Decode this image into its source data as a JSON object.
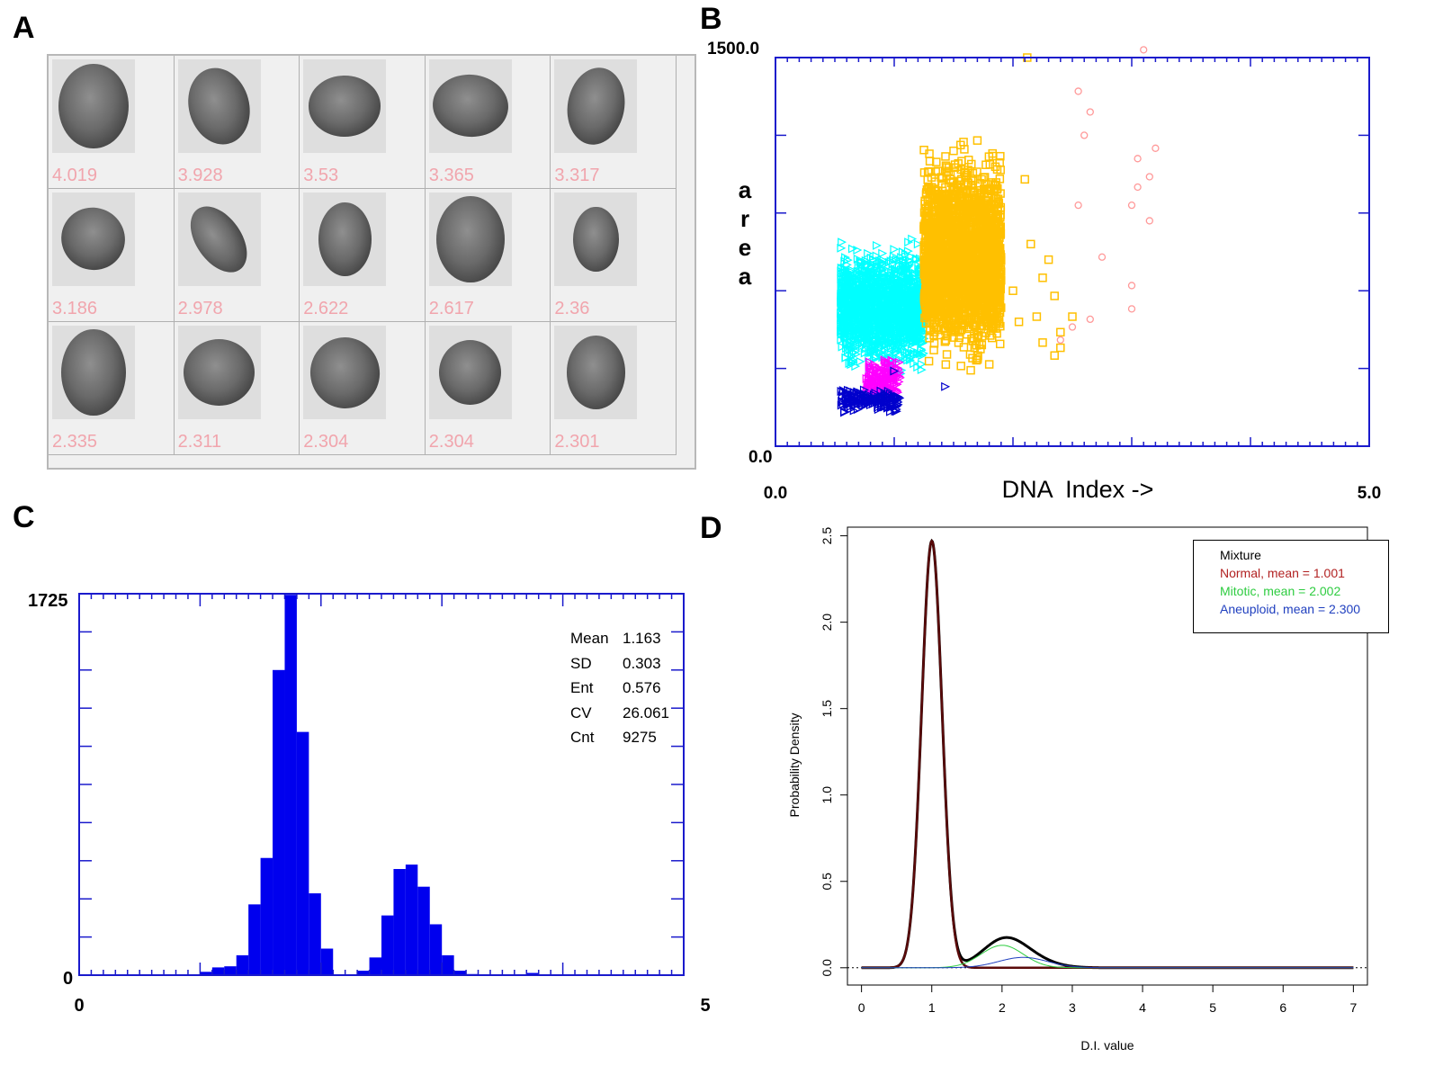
{
  "panels": {
    "a": {
      "letter": "A"
    },
    "b": {
      "letter": "B"
    },
    "c": {
      "letter": "C"
    },
    "d": {
      "letter": "D"
    }
  },
  "cell_gallery": {
    "values": [
      "4.019",
      "3.928",
      "3.53",
      "3.365",
      "3.317",
      "3.186",
      "2.978",
      "2.622",
      "2.617",
      "2.36",
      "2.335",
      "2.311",
      "2.304",
      "2.304",
      "2.301"
    ]
  },
  "chart_data": [
    {
      "type": "scatter",
      "ylabel": "a r e a",
      "xlabel": "DNA  Index ->",
      "xlim": [
        0.0,
        5.0
      ],
      "ylim": [
        0.0,
        1500.0
      ],
      "x_tick_labels": [
        "0.0",
        "5.0"
      ],
      "y_tick_labels": [
        "0.0",
        "1500.0"
      ],
      "series": [
        {
          "color": "#00ffff",
          "marker": "triangle",
          "cluster": {
            "x_range": [
              0.55,
              1.25
            ],
            "y_range": [
              250,
              810
            ]
          },
          "points": [
            [
              1.0,
              760
            ],
            [
              1.15,
              800
            ],
            [
              1.2,
              780
            ],
            [
              0.75,
              520
            ],
            [
              0.6,
              400
            ]
          ]
        },
        {
          "color": "#ffc000",
          "marker": "square",
          "cluster": {
            "x_range": [
              1.25,
              1.9
            ],
            "y_range": [
              270,
              1200
            ]
          },
          "points": [
            [
              1.5,
              1140
            ],
            [
              1.3,
              1100
            ],
            [
              1.7,
              1180
            ],
            [
              2.1,
              1030
            ],
            [
              2.15,
              780
            ],
            [
              2.3,
              720
            ],
            [
              2.25,
              650
            ],
            [
              2.35,
              580
            ],
            [
              2.0,
              600
            ],
            [
              2.25,
              400
            ],
            [
              2.4,
              440
            ],
            [
              2.05,
              480
            ],
            [
              2.5,
              500
            ],
            [
              2.2,
              500
            ],
            [
              1.8,
              600
            ],
            [
              2.4,
              380
            ],
            [
              2.35,
              350
            ],
            [
              2.12,
              1500
            ]
          ]
        },
        {
          "color": "#ff00ff",
          "marker": "triangle",
          "cluster": {
            "x_range": [
              0.75,
              1.05
            ],
            "y_range": [
              160,
              360
            ]
          },
          "points": [
            [
              0.7,
              200
            ],
            [
              0.8,
              170
            ]
          ]
        },
        {
          "color": "#0000cc",
          "marker": "triangle",
          "cluster": {
            "x_range": [
              0.55,
              1.05
            ],
            "y_range": [
              120,
              240
            ]
          },
          "points": [
            [
              0.57,
              210
            ],
            [
              0.58,
              130
            ],
            [
              0.6,
              200
            ],
            [
              1.43,
              230
            ],
            [
              1.0,
              290
            ]
          ]
        },
        {
          "color": "#ff9999",
          "marker": "circle",
          "cluster": null,
          "points": [
            [
              3.1,
              1530
            ],
            [
              2.55,
              1370
            ],
            [
              2.65,
              1290
            ],
            [
              2.6,
              1200
            ],
            [
              3.2,
              1150
            ],
            [
              3.05,
              1110
            ],
            [
              3.15,
              1040
            ],
            [
              3.05,
              1000
            ],
            [
              2.55,
              930
            ],
            [
              3.0,
              930
            ],
            [
              3.15,
              870
            ],
            [
              2.75,
              730
            ],
            [
              3.0,
              620
            ],
            [
              3.0,
              530
            ],
            [
              2.65,
              490
            ],
            [
              2.5,
              460
            ],
            [
              2.4,
              410
            ]
          ]
        }
      ]
    },
    {
      "type": "bar",
      "title": "",
      "xlim": [
        0,
        5
      ],
      "ylim": [
        0,
        1725
      ],
      "x_tick_labels": [
        "0",
        "5"
      ],
      "y_tick_labels": [
        "0",
        "1725"
      ],
      "bin_width": 0.1,
      "bins_x": [
        0.25,
        0.35,
        0.45,
        0.55,
        0.65,
        0.75,
        0.85,
        0.95,
        1.05,
        1.15,
        1.25,
        1.35,
        1.45,
        1.55,
        1.65,
        1.75,
        1.85,
        1.95,
        2.05,
        2.15,
        2.25,
        2.35,
        2.45,
        2.55,
        2.65,
        2.75,
        2.85,
        2.95,
        3.05,
        3.15,
        3.25,
        3.35,
        3.45,
        3.55,
        3.65,
        3.75,
        3.85,
        3.95,
        4.05,
        4.15,
        4.25,
        4.35,
        4.45,
        4.55,
        4.65,
        4.75,
        4.85,
        4.95
      ],
      "values": [
        0,
        0,
        0,
        0,
        0,
        0,
        0,
        0,
        15,
        35,
        40,
        90,
        320,
        530,
        1380,
        1720,
        1100,
        370,
        120,
        0,
        0,
        20,
        80,
        270,
        480,
        500,
        400,
        230,
        90,
        20,
        5,
        0,
        0,
        0,
        0,
        10,
        3,
        0,
        0,
        0,
        0,
        0,
        0,
        0,
        0,
        0,
        0,
        0
      ],
      "stats": [
        {
          "label": "Mean",
          "value": "1.163"
        },
        {
          "label": "SD",
          "value": "0.303"
        },
        {
          "label": "Ent",
          "value": "0.576"
        },
        {
          "label": "CV",
          "value": "26.061"
        },
        {
          "label": "Cnt",
          "value": "9275"
        }
      ]
    },
    {
      "type": "line",
      "xlabel": "D.I. value",
      "ylabel": "Probability Density",
      "xlim": [
        -0.2,
        7.2
      ],
      "ylim": [
        -0.1,
        2.55
      ],
      "x_ticks": [
        0,
        1,
        2,
        3,
        4,
        5,
        6,
        7
      ],
      "x_tick_labels": [
        "0",
        "1",
        "2",
        "3",
        "4",
        "5",
        "6",
        "7"
      ],
      "y_ticks": [
        0.0,
        0.5,
        1.0,
        1.5,
        2.0,
        2.5
      ],
      "y_tick_labels": [
        "0.0",
        "0.5",
        "1.0",
        "1.5",
        "2.0",
        "2.5"
      ],
      "x_range": [
        0,
        7
      ],
      "components": [
        {
          "name": "Normal",
          "color": "#b22222",
          "mean": 1.001,
          "sd": 0.145,
          "peak": 2.47
        },
        {
          "name": "Mitotic",
          "color": "#2ecc40",
          "mean": 2.002,
          "sd": 0.3,
          "peak": 0.13
        },
        {
          "name": "Aneuploid",
          "color": "#1f3fbf",
          "mean": 2.3,
          "sd": 0.35,
          "peak": 0.06
        }
      ],
      "mixture_color": "#000000",
      "mixture_normal_color": "#5a0a0a",
      "legend": {
        "title": "Mixture",
        "entries": [
          {
            "text": "Normal, mean = 1.001",
            "color": "#b22222"
          },
          {
            "text": "Mitotic,  mean = 2.002",
            "color": "#2ecc40"
          },
          {
            "text": "Aneuploid, mean = 2.300",
            "color": "#1f3fbf"
          }
        ]
      }
    }
  ]
}
